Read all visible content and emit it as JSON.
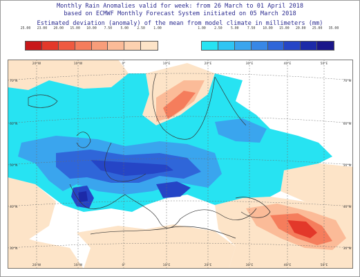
{
  "title": {
    "line1": "Monthly Rain Anomalies valid for week: from 26 March to 01 April 2018",
    "line2": "based on ECMWF Monthly Forecast System initiated on 05 March 2018",
    "line3": "Estimated deviation (anomaly) of the mean from model climate in millimeters (mm)"
  },
  "legend_dry": {
    "labels": [
      "25.00",
      "23.00",
      "20.00",
      "15.00",
      "10.00",
      "7.50",
      "5.00",
      "2.50",
      "1.00"
    ],
    "colors": [
      "#c8181a",
      "#e3382a",
      "#ef5a40",
      "#f57d5c",
      "#f89d7a",
      "#fbbb98",
      "#fcd1b0",
      "#fde4c8"
    ]
  },
  "legend_wet": {
    "labels": [
      "1.00",
      "2.50",
      "5.00",
      "7.50",
      "10.00",
      "15.00",
      "20.00",
      "25.00",
      "35.00"
    ],
    "colors": [
      "#27e3f2",
      "#2fc5f3",
      "#3aa5ee",
      "#3887e6",
      "#2f66d9",
      "#2545c6",
      "#1c2aa8",
      "#1a168a"
    ]
  },
  "map": {
    "lon_labels": [
      "20°W",
      "10°W",
      "0°",
      "10°E",
      "20°E",
      "30°E",
      "40°E",
      "50°E"
    ],
    "lat_labels": [
      "70°N",
      "60°N",
      "50°N",
      "40°N",
      "30°N"
    ]
  }
}
